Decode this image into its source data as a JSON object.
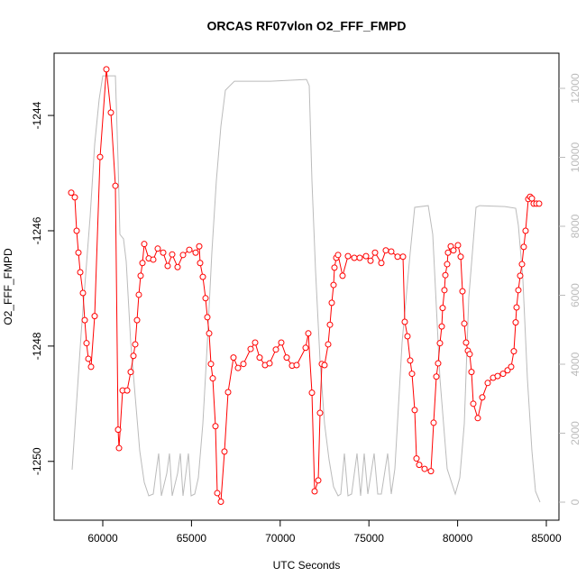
{
  "chart_data": {
    "type": "line",
    "title": "ORCAS RF07vlon O2_FFF_FMPD",
    "x_label": "UTC Seconds",
    "y_label": "O2_FFF_FMPD",
    "xlim": [
      57256,
      85711
    ],
    "xticks": [
      60000,
      65000,
      70000,
      75000,
      80000,
      85000
    ],
    "ylim": [
      -1251.02,
      -1242.92
    ],
    "yticks": [
      -1250,
      -1248,
      -1246,
      -1244
    ],
    "y2lim": [
      -523,
      13020
    ],
    "y2ticks": [
      0,
      2000,
      4000,
      6000,
      8000,
      10000,
      12000
    ],
    "series": [
      {
        "color": "#bbbbbb",
        "axis": "y2",
        "markers": false,
        "x": [
          58272,
          58781,
          59289,
          59543,
          59797,
          60000,
          60711,
          60864,
          60965,
          61169,
          61321,
          61575,
          61829,
          62083,
          62337,
          62591,
          62845,
          62998,
          63150,
          63303,
          63608,
          63760,
          63912,
          64217,
          64370,
          64522,
          64827,
          64979,
          65183,
          65386,
          65640,
          65894,
          66148,
          66402,
          66656,
          66910,
          67418,
          69451,
          71483,
          71635,
          71788,
          71991,
          72245,
          72499,
          72753,
          73007,
          73261,
          73414,
          73617,
          73820,
          74024,
          74328,
          74532,
          74735,
          74938,
          75294,
          75497,
          75700,
          76056,
          76259,
          76462,
          76869,
          77326,
          77580,
          78342,
          78596,
          79003,
          79409,
          79867,
          80121,
          80375,
          80629,
          81035,
          81239,
          82661,
          83271,
          83423,
          83677,
          83932,
          84186,
          84389,
          84643
        ],
        "values": [
          941,
          4888,
          8286,
          10378,
          11685,
          12364,
          12364,
          9855,
          7764,
          7633,
          6979,
          4627,
          3058,
          1490,
          575,
          183,
          235,
          836,
          1412,
          183,
          836,
          1412,
          183,
          836,
          1412,
          183,
          1412,
          183,
          235,
          706,
          2274,
          4627,
          7241,
          9332,
          10900,
          11946,
          12207,
          12207,
          12260,
          12077,
          9332,
          6718,
          4104,
          2274,
          1229,
          444,
          183,
          235,
          1412,
          183,
          235,
          1412,
          183,
          1412,
          235,
          1412,
          235,
          235,
          1412,
          235,
          967,
          4627,
          7241,
          8548,
          8600,
          7764,
          3581,
          967,
          235,
          706,
          2274,
          5934,
          8548,
          8600,
          8574,
          8522,
          8025,
          6457,
          3581,
          1490,
          314,
          0
        ]
      },
      {
        "color": "#ff0000",
        "axis": "y",
        "markers": true,
        "x": [
          58222,
          58425,
          58527,
          58628,
          58730,
          58882,
          58984,
          59085,
          59187,
          59339,
          59543,
          59848,
          60203,
          60457,
          60711,
          60864,
          60915,
          61118,
          61372,
          61575,
          61728,
          61829,
          61931,
          62032,
          62134,
          62236,
          62337,
          62591,
          62845,
          63099,
          63404,
          63658,
          63912,
          64217,
          64522,
          64878,
          65233,
          65437,
          65487,
          65640,
          65792,
          65894,
          65996,
          66097,
          66199,
          66351,
          66453,
          66656,
          66859,
          67063,
          67367,
          67622,
          67926,
          68333,
          68587,
          68841,
          69146,
          69400,
          69756,
          70060,
          70365,
          70670,
          70924,
          71432,
          71585,
          71788,
          71940,
          72144,
          72245,
          72347,
          72499,
          72703,
          72804,
          72906,
          73007,
          73058,
          73160,
          73261,
          73515,
          73820,
          74176,
          74481,
          74837,
          75091,
          75345,
          75700,
          75954,
          76259,
          76615,
          76920,
          77021,
          77174,
          77326,
          77428,
          77580,
          77682,
          77834,
          78139,
          78495,
          78647,
          78800,
          78901,
          79003,
          79105,
          79155,
          79257,
          79308,
          79409,
          79460,
          79613,
          79765,
          80019,
          80172,
          80273,
          80375,
          80476,
          80578,
          80680,
          80781,
          80883,
          81137,
          81391,
          81696,
          82001,
          82255,
          82560,
          82814,
          83017,
          83169,
          83271,
          83322,
          83423,
          83525,
          83627,
          83728,
          83830,
          83982,
          84084,
          84186,
          84287,
          84440,
          84592
        ],
        "values": [
          -1245.34,
          -1245.42,
          -1246.0,
          -1246.38,
          -1246.72,
          -1247.08,
          -1247.55,
          -1247.95,
          -1248.22,
          -1248.36,
          -1247.48,
          -1244.72,
          -1243.2,
          -1243.95,
          -1245.22,
          -1249.45,
          -1249.77,
          -1248.77,
          -1248.77,
          -1248.45,
          -1248.17,
          -1247.97,
          -1247.55,
          -1247.11,
          -1246.78,
          -1246.56,
          -1246.23,
          -1246.48,
          -1246.5,
          -1246.31,
          -1246.38,
          -1246.61,
          -1246.41,
          -1246.63,
          -1246.42,
          -1246.33,
          -1246.38,
          -1246.27,
          -1246.56,
          -1246.8,
          -1247.17,
          -1247.5,
          -1247.78,
          -1248.31,
          -1248.56,
          -1249.39,
          -1250.55,
          -1250.7,
          -1249.83,
          -1248.8,
          -1248.2,
          -1248.38,
          -1248.31,
          -1248.05,
          -1247.94,
          -1248.2,
          -1248.33,
          -1248.3,
          -1248.06,
          -1247.94,
          -1248.2,
          -1248.34,
          -1248.33,
          -1248.03,
          -1247.78,
          -1248.81,
          -1250.52,
          -1250.33,
          -1249.16,
          -1248.31,
          -1248.33,
          -1247.97,
          -1247.63,
          -1247.25,
          -1246.94,
          -1246.64,
          -1246.47,
          -1246.42,
          -1246.78,
          -1246.44,
          -1246.47,
          -1246.47,
          -1246.44,
          -1246.52,
          -1246.38,
          -1246.56,
          -1246.34,
          -1246.36,
          -1246.45,
          -1246.45,
          -1247.58,
          -1247.83,
          -1248.25,
          -1248.48,
          -1249.11,
          -1249.95,
          -1250.06,
          -1250.13,
          -1250.17,
          -1249.33,
          -1248.53,
          -1248.3,
          -1247.95,
          -1247.66,
          -1247.34,
          -1247.03,
          -1246.77,
          -1246.58,
          -1246.38,
          -1246.27,
          -1246.34,
          -1246.25,
          -1246.45,
          -1247.05,
          -1247.61,
          -1247.94,
          -1248.08,
          -1248.14,
          -1248.45,
          -1249.0,
          -1249.25,
          -1248.89,
          -1248.64,
          -1248.55,
          -1248.52,
          -1248.48,
          -1248.42,
          -1248.36,
          -1248.09,
          -1247.59,
          -1247.33,
          -1247.03,
          -1246.78,
          -1246.58,
          -1246.28,
          -1246.0,
          -1245.45,
          -1245.41,
          -1245.44,
          -1245.53,
          -1245.53,
          -1245.53
        ]
      }
    ]
  }
}
